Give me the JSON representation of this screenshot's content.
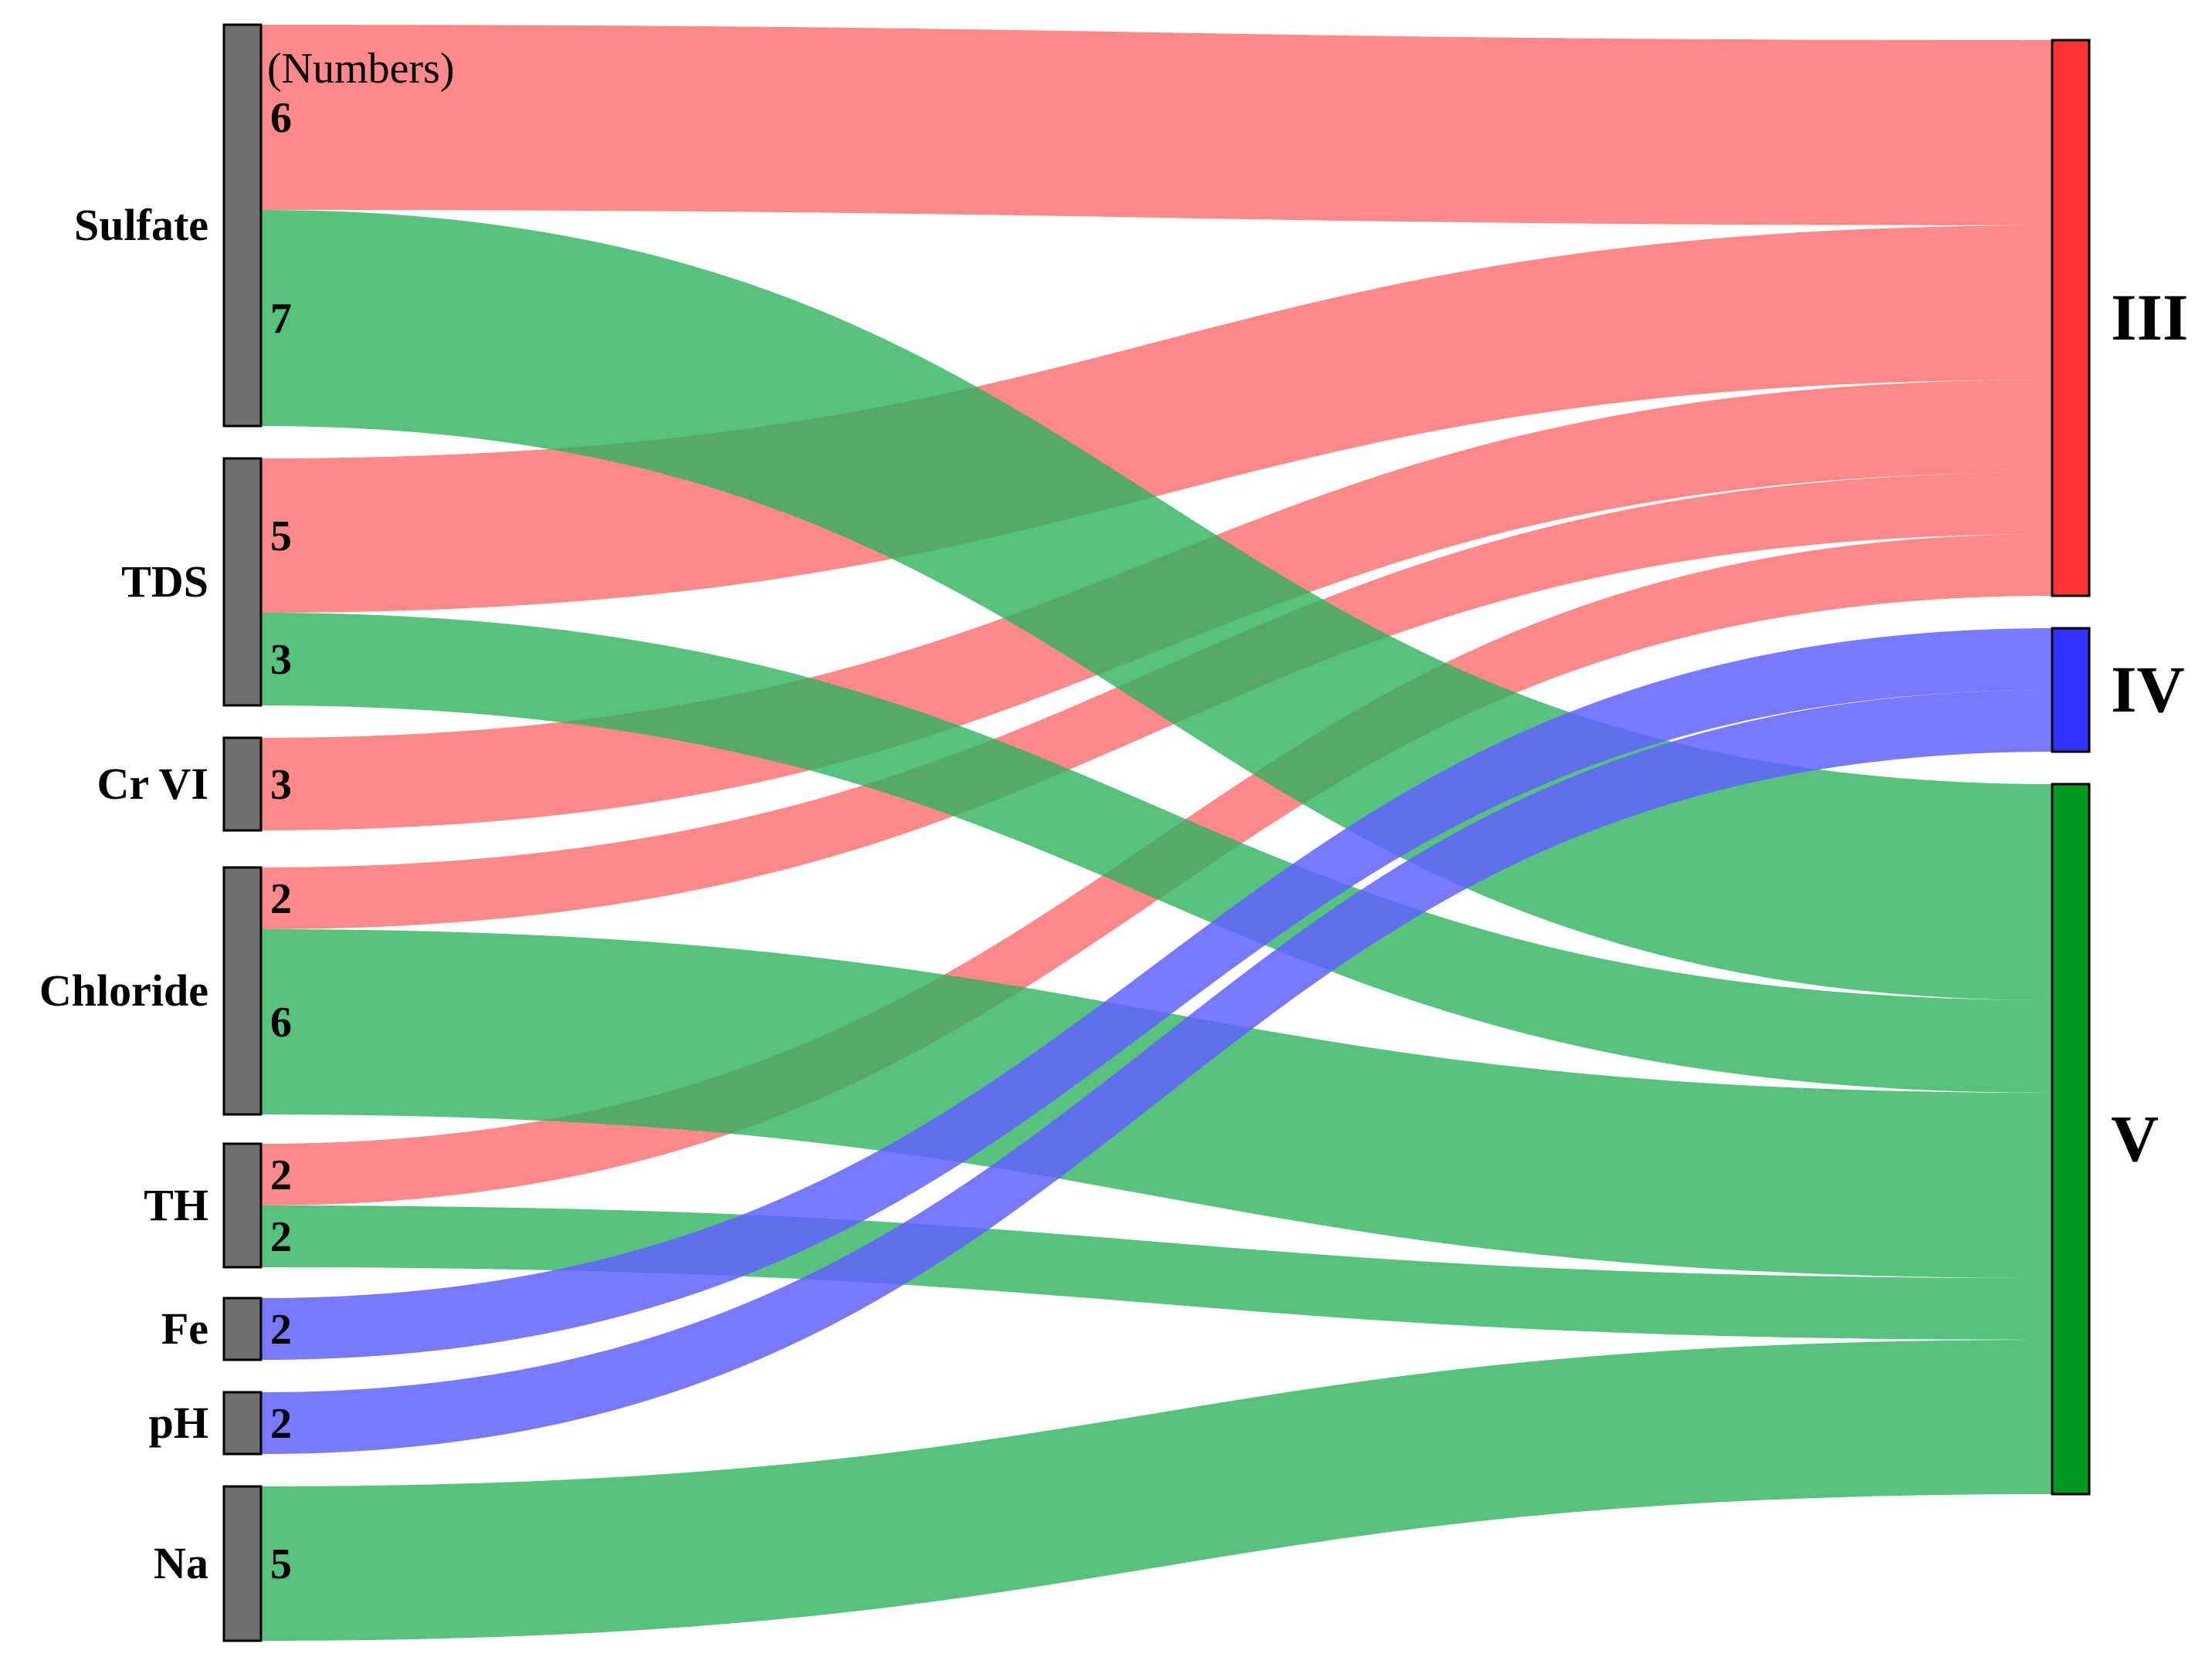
{
  "header_label": "(Numbers)",
  "colors": {
    "III": "#ff3333",
    "IV": "#3333ff",
    "V": "#009a22",
    "flow_III": "#ff6b6b",
    "flow_IV": "#6161ff",
    "flow_V": "#2db35c",
    "source_node": "#6e6e6e"
  },
  "sources": [
    "Sulfate",
    "TDS",
    "Cr VI",
    "Chloride",
    "TH",
    "Fe",
    "pH",
    "Na"
  ],
  "targets": [
    "III",
    "IV",
    "V"
  ],
  "links": [
    {
      "source": "Sulfate",
      "target": "III",
      "value": 6
    },
    {
      "source": "Sulfate",
      "target": "V",
      "value": 7
    },
    {
      "source": "TDS",
      "target": "III",
      "value": 5
    },
    {
      "source": "TDS",
      "target": "V",
      "value": 3
    },
    {
      "source": "Cr VI",
      "target": "III",
      "value": 3
    },
    {
      "source": "Chloride",
      "target": "III",
      "value": 2
    },
    {
      "source": "Chloride",
      "target": "V",
      "value": 6
    },
    {
      "source": "TH",
      "target": "III",
      "value": 2
    },
    {
      "source": "TH",
      "target": "V",
      "value": 2
    },
    {
      "source": "Fe",
      "target": "IV",
      "value": 2
    },
    {
      "source": "pH",
      "target": "IV",
      "value": 2
    },
    {
      "source": "Na",
      "target": "V",
      "value": 5
    }
  ]
}
